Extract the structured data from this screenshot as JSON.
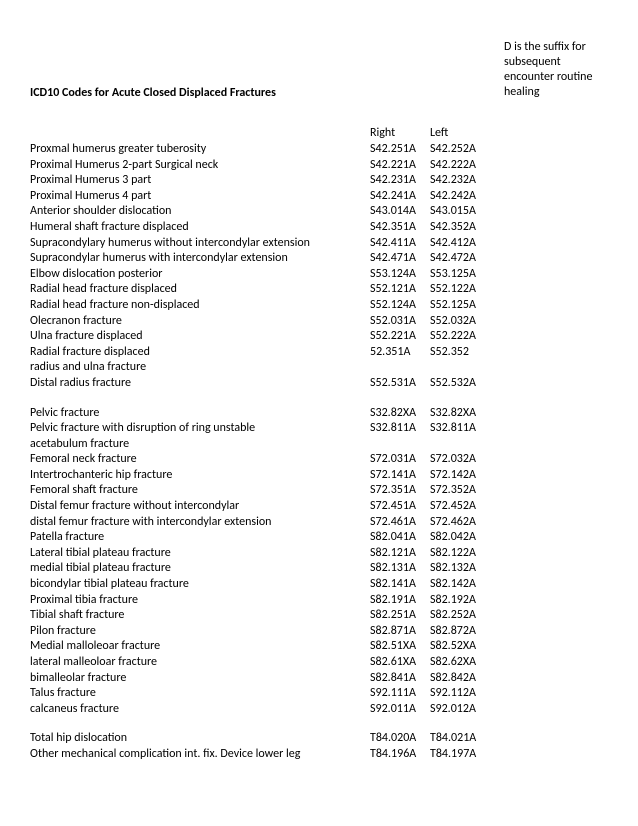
{
  "title": "ICD10 Codes for Acute Closed Displaced Fractures",
  "side_note": "D is the suffix for subsequent encounter routine healing",
  "columns": {
    "desc": "",
    "right": "Right",
    "left": "Left"
  },
  "sections": [
    {
      "rows": [
        {
          "desc": "Proxmal humerus greater tuberosity",
          "right": "S42.251A",
          "left": "S42.252A"
        },
        {
          "desc": "Proximal Humerus 2-part Surgical neck",
          "right": "S42.221A",
          "left": "S42.222A"
        },
        {
          "desc": "Proximal Humerus 3 part",
          "right": "S42.231A",
          "left": "S42.232A"
        },
        {
          "desc": "Proximal Humerus 4 part",
          "right": "S42.241A",
          "left": " S42.242A"
        },
        {
          "desc": "Anterior shoulder dislocation",
          "right": "S43.014A",
          "left": "S43.015A"
        },
        {
          "desc": "Humeral shaft fracture displaced",
          "right": "S42.351A",
          "left": "S42.352A"
        },
        {
          "desc": "Supracondylary humerus without intercondylar extension",
          "right": "S42.411A",
          "left": "S42.412A"
        },
        {
          "desc": "Supracondylar humerus with intercondylar extension",
          "right": "S42.471A",
          "left": "S42.472A"
        },
        {
          "desc": "Elbow dislocation posterior",
          "right": "S53.124A",
          "left": "S53.125A"
        },
        {
          "desc": "Radial head fracture displaced",
          "right": "S52.121A",
          "left": "S52.122A"
        },
        {
          "desc": "Radial head fracture non-displaced",
          "right": "S52.124A",
          "left": "S52.125A"
        },
        {
          "desc": "Olecranon fracture",
          "right": "S52.031A",
          "left": "S52.032A"
        },
        {
          "desc": "Ulna fracture displaced",
          "right": "S52.221A",
          "left": "S52.222A"
        },
        {
          "desc": "Radial fracture displaced",
          "right": "52.351A",
          "left": "S52.352"
        },
        {
          "desc": "radius and ulna fracture",
          "right": "",
          "left": ""
        },
        {
          "desc": "Distal radius fracture",
          "right": "S52.531A",
          "left": "S52.532A"
        }
      ]
    },
    {
      "rows": [
        {
          "desc": "Pelvic fracture",
          "right": "S32.82XA",
          "left": "S32.82XA"
        },
        {
          "desc": "Pelvic fracture with disruption of ring unstable",
          "right": "S32.811A",
          "left": "S32.811A"
        },
        {
          "desc": "acetabulum fracture",
          "right": "",
          "left": ""
        },
        {
          "desc": "Femoral neck fracture",
          "right": "S72.031A",
          "left": "S72.032A"
        },
        {
          "desc": "Intertrochanteric hip fracture",
          "right": "S72.141A",
          "left": "S72.142A"
        },
        {
          "desc": "Femoral shaft fracture",
          "right": "S72.351A",
          "left": "S72.352A"
        },
        {
          "desc": "Distal femur fracture without intercondylar",
          "right": "S72.451A",
          "left": "S72.452A"
        },
        {
          "desc": "distal femur fracture with intercondylar extension",
          "right": "S72.461A",
          "left": "S72.462A"
        },
        {
          "desc": "Patella fracture",
          "right": "S82.041A",
          "left": " S82.042A"
        },
        {
          "desc": "Lateral tibial plateau fracture",
          "right": "S82.121A",
          "left": "S82.122A"
        },
        {
          "desc": "medial tibial plateau fracture",
          "right": "S82.131A",
          "left": "S82.132A"
        },
        {
          "desc": "bicondylar tibial plateau fracture",
          "right": "S82.141A",
          "left": "S82.142A"
        },
        {
          "desc": "Proximal tibia fracture",
          "right": "S82.191A",
          "left": "S82.192A"
        },
        {
          "desc": "Tibial shaft fracture",
          "right": "S82.251A",
          "left": "S82.252A"
        },
        {
          "desc": "Pilon fracture",
          "right": "S82.871A",
          "left": "S82.872A"
        },
        {
          "desc": "Medial malloleoar fracture",
          "right": "S82.51XA",
          "left": "S82.52XA"
        },
        {
          "desc": "lateral malleoloar fracture",
          "right": "S82.61XA",
          "left": "S82.62XA"
        },
        {
          "desc": "bimalleolar fracture",
          "right": "S82.841A",
          "left": "S82.842A"
        },
        {
          "desc": "Talus fracture",
          "right": "S92.111A",
          "left": "S92.112A"
        },
        {
          "desc": "calcaneus fracture",
          "right": "S92.011A",
          "left": "S92.012A"
        }
      ]
    },
    {
      "rows": [
        {
          "desc": "Total hip dislocation",
          "right": "T84.020A",
          "left": "T84.021A"
        },
        {
          "desc": "Other mechanical complication int. fix. Device lower leg",
          "right": "T84.196A",
          "left": "T84.197A"
        }
      ]
    }
  ]
}
